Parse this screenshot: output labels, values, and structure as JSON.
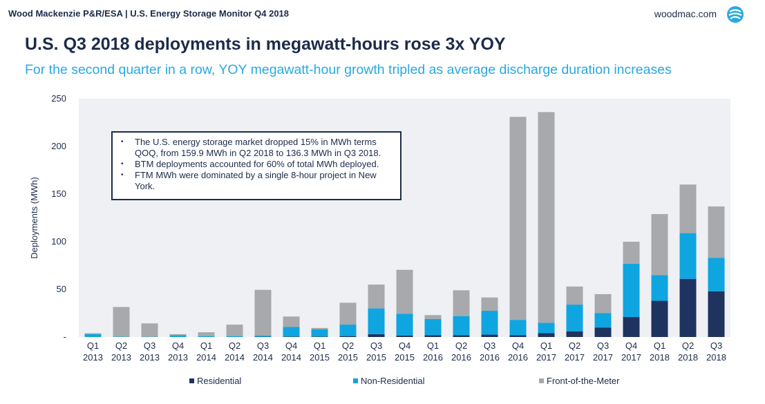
{
  "header": {
    "left_text": "Wood Mackenzie P&R/ESA | U.S. Energy Storage Monitor Q4 2018",
    "site": "woodmac.com",
    "logo_icon": "globe-logo-icon",
    "logo_color": "#29a9e0"
  },
  "title": "U.S. Q3 2018 deployments in megawatt-hours rose 3x YOY",
  "subtitle": "For the second quarter in a row, YOY megawatt-hour growth tripled as average discharge duration increases",
  "notes": [
    "The U.S. energy storage market dropped 15% in MWh terms QOQ, from 159.9 MWh in Q2 2018 to 136.3 MWh in Q3 2018.",
    "BTM deployments accounted for 60% of total MWh deployed.",
    "FTM MWh were dominated by a single 8-hour project in New York."
  ],
  "chart_data": {
    "type": "bar",
    "stacked": true,
    "title": "",
    "xlabel": "",
    "ylabel": "Deployments (MWh)",
    "ylim": [
      0,
      250
    ],
    "yticks": [
      0,
      50,
      100,
      150,
      200,
      250
    ],
    "ytick_labels": [
      "-",
      "50",
      "100",
      "150",
      "200",
      "250"
    ],
    "grid": false,
    "plot_background": "#eef0f3",
    "legend_position": "bottom",
    "categories": [
      [
        "Q1",
        "2013"
      ],
      [
        "Q2",
        "2013"
      ],
      [
        "Q3",
        "2013"
      ],
      [
        "Q4",
        "2013"
      ],
      [
        "Q1",
        "2014"
      ],
      [
        "Q2",
        "2014"
      ],
      [
        "Q3",
        "2014"
      ],
      [
        "Q4",
        "2014"
      ],
      [
        "Q1",
        "2015"
      ],
      [
        "Q2",
        "2015"
      ],
      [
        "Q3",
        "2015"
      ],
      [
        "Q4",
        "2015"
      ],
      [
        "Q1",
        "2016"
      ],
      [
        "Q2",
        "2016"
      ],
      [
        "Q3",
        "2016"
      ],
      [
        "Q4",
        "2016"
      ],
      [
        "Q1",
        "2017"
      ],
      [
        "Q2",
        "2017"
      ],
      [
        "Q3",
        "2017"
      ],
      [
        "Q4",
        "2017"
      ],
      [
        "Q1",
        "2018"
      ],
      [
        "Q2",
        "2018"
      ],
      [
        "Q3",
        "2018"
      ]
    ],
    "series": [
      {
        "name": "Residential",
        "color": "#1f3361",
        "values": [
          0,
          0,
          0,
          0,
          0,
          0,
          0.3,
          0.5,
          0.5,
          1,
          3,
          1.5,
          2,
          2,
          2.5,
          2,
          4,
          6,
          10,
          21,
          38,
          61,
          48
        ]
      },
      {
        "name": "Non-Residential",
        "color": "#0fa5e0",
        "values": [
          3,
          0.5,
          0.3,
          2,
          1,
          1,
          1.2,
          10,
          7.5,
          12,
          27,
          23,
          17,
          20,
          25,
          16,
          11,
          28,
          15,
          56,
          27,
          48,
          35
        ]
      },
      {
        "name": "Front-of-the-Meter",
        "color": "#a7a9ac",
        "values": [
          1,
          31,
          14,
          1,
          4,
          12,
          48,
          11,
          1.5,
          23,
          25,
          46,
          4,
          27,
          14,
          213,
          221,
          19,
          20,
          23,
          64,
          51,
          54
        ]
      }
    ]
  }
}
